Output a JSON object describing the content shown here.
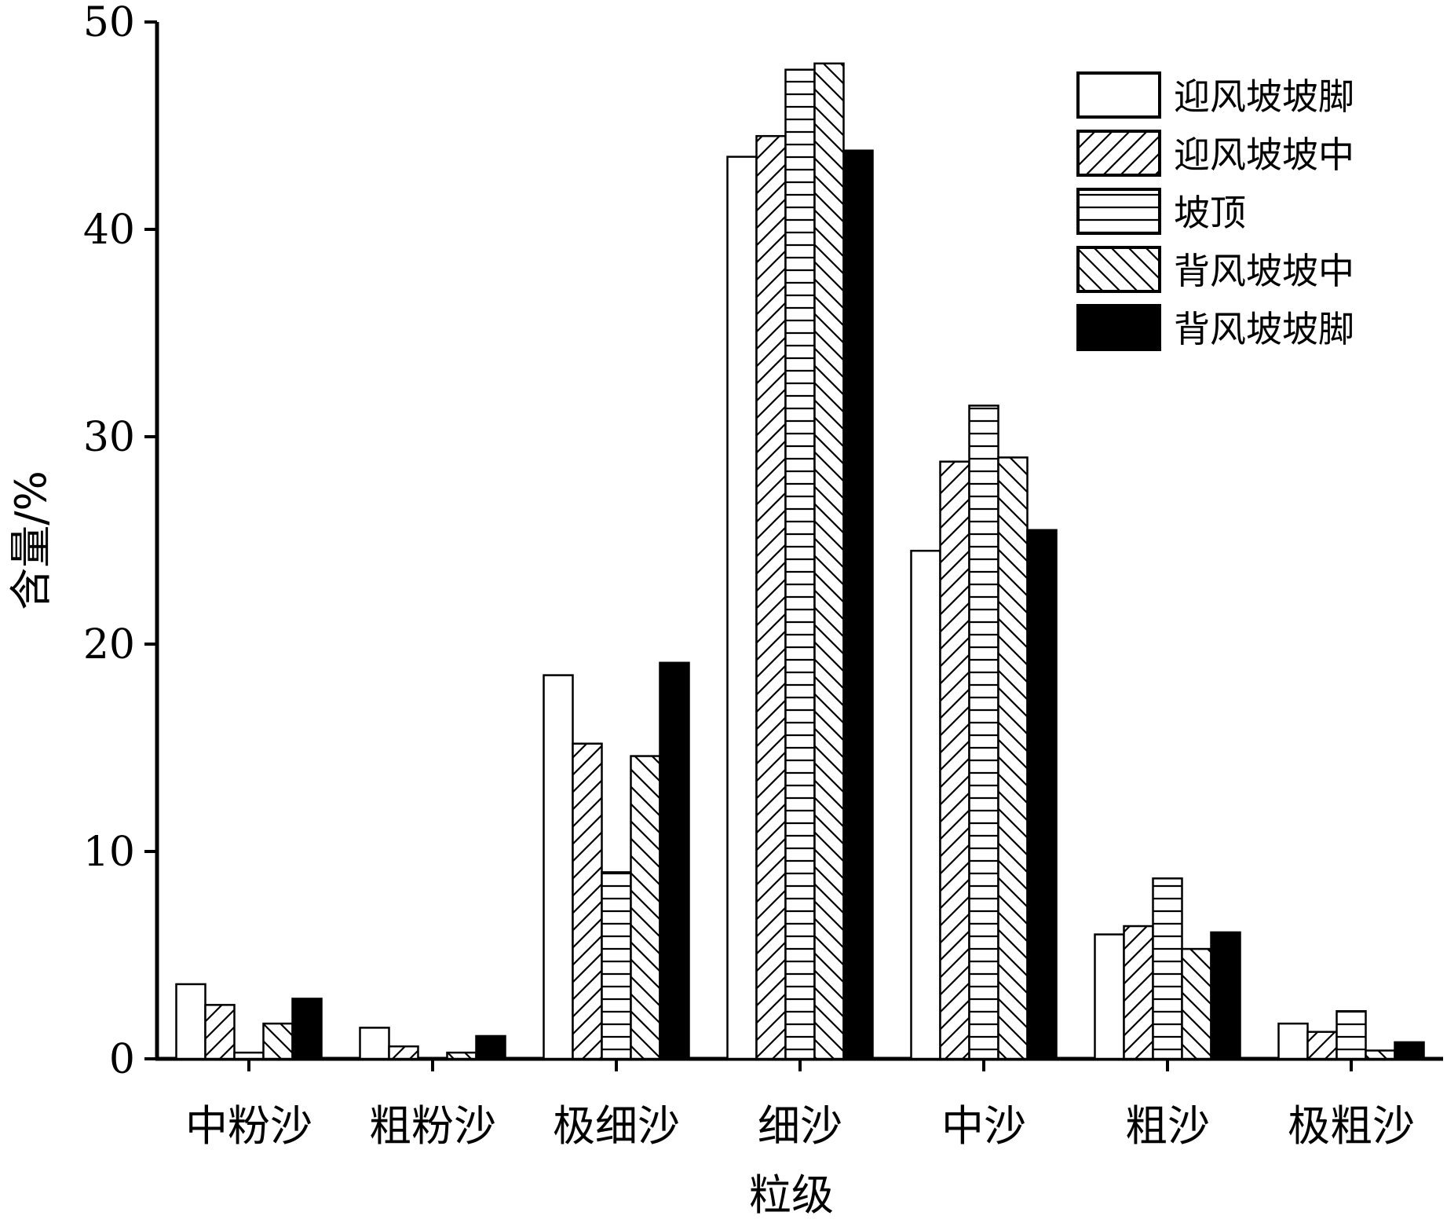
{
  "chart_data": {
    "type": "bar",
    "title": "",
    "xlabel": "粒级",
    "ylabel": "含量/%",
    "ylim": [
      0,
      50
    ],
    "yticks": [
      0,
      10,
      20,
      30,
      40,
      50
    ],
    "legend_position": "top-right",
    "categories": [
      "中粉沙",
      "粗粉沙",
      "极细沙",
      "细沙",
      "中沙",
      "粗沙",
      "极粗沙"
    ],
    "series": [
      {
        "name": "迎风坡坡脚",
        "pattern": "white",
        "values": [
          3.6,
          1.5,
          18.5,
          43.5,
          24.5,
          6.0,
          1.7
        ]
      },
      {
        "name": "迎风坡坡中",
        "pattern": "diagonal-up",
        "values": [
          2.6,
          0.6,
          15.2,
          44.5,
          28.8,
          6.4,
          1.3
        ]
      },
      {
        "name": "坡顶",
        "pattern": "horizontal",
        "values": [
          0.3,
          0.0,
          9.0,
          47.7,
          31.5,
          8.7,
          2.3
        ]
      },
      {
        "name": "背风坡坡中",
        "pattern": "diagonal-down",
        "values": [
          1.7,
          0.3,
          14.6,
          48.0,
          29.0,
          5.3,
          0.4
        ]
      },
      {
        "name": "背风坡坡脚",
        "pattern": "black",
        "values": [
          2.9,
          1.1,
          19.1,
          43.8,
          25.5,
          6.1,
          0.8
        ]
      }
    ]
  }
}
